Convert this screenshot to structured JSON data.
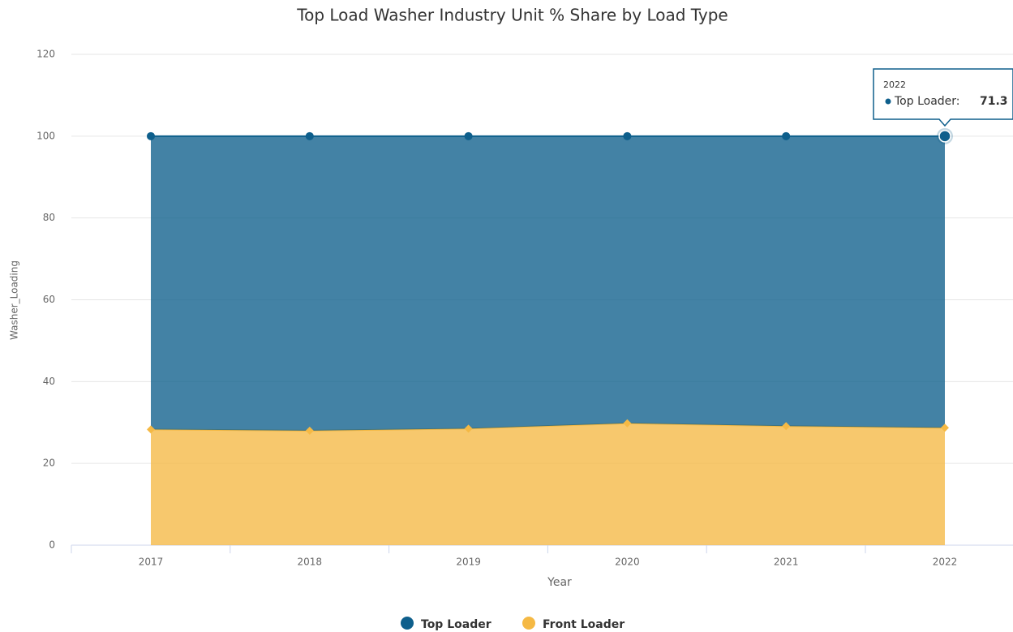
{
  "chart_data": {
    "type": "stacked_area",
    "title": "Top Load Washer Industry Unit % Share by Load Type",
    "x_label": "Year",
    "y_label": "Washer_Loading",
    "categories": [
      "2017",
      "2018",
      "2019",
      "2020",
      "2021",
      "2022"
    ],
    "series": [
      {
        "name": "Top Loader",
        "color": "#0e5f8c",
        "values": [
          71.7,
          72.0,
          71.5,
          70.2,
          70.9,
          71.3
        ]
      },
      {
        "name": "Front Loader",
        "color": "#f5b944",
        "values": [
          28.3,
          28.0,
          28.5,
          29.8,
          29.1,
          28.7
        ]
      }
    ],
    "ylim": [
      0,
      120
    ],
    "yticks": [
      0,
      20,
      40,
      60,
      80,
      100,
      120
    ],
    "grid": true,
    "tooltip": {
      "title": "2022",
      "label": "Top Loader:",
      "value": 71.3
    }
  }
}
